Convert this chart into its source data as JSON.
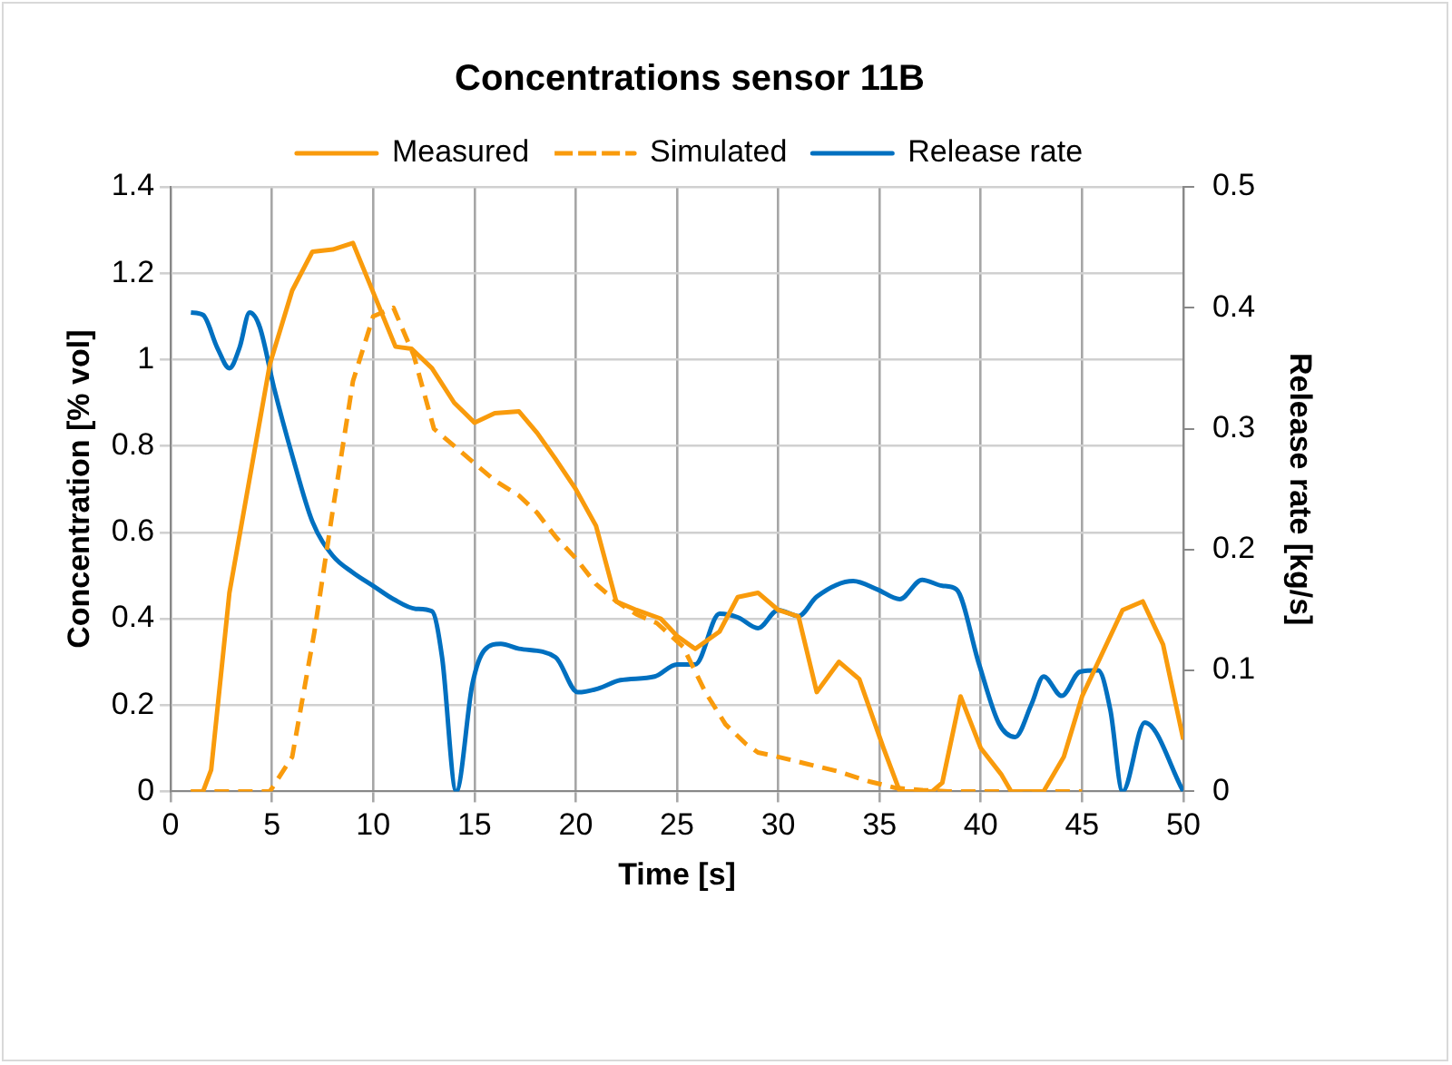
{
  "chart_data": {
    "type": "line",
    "title": "Concentrations sensor 11B",
    "xlabel": "Time [s]",
    "ylabel": "Concentration [% vol]",
    "y2label": "Release rate [kg/s]",
    "xlim": [
      0,
      50
    ],
    "xticks": [
      0,
      5,
      10,
      15,
      20,
      25,
      30,
      35,
      40,
      45,
      50
    ],
    "ylim": [
      0,
      1.4
    ],
    "yticks": [
      0,
      0.2,
      0.4,
      0.6,
      0.8,
      1,
      1.2,
      1.4
    ],
    "y2lim": [
      0,
      0.5
    ],
    "y2ticks": [
      0,
      0.1,
      0.2,
      0.3,
      0.4,
      0.5
    ],
    "grid": true,
    "legend": "top",
    "marker": "none",
    "series": [
      {
        "name": "Measured",
        "color": "#f99b0c",
        "line_style": "solid",
        "x": [
          1,
          1.6,
          2,
          2.9,
          4.9,
          6,
          7,
          8,
          9,
          11.1,
          11.9,
          12.9,
          14,
          15,
          16,
          17.2,
          18.1,
          19,
          20,
          21,
          22,
          23,
          24.2,
          25,
          25.9,
          27.1,
          28,
          29,
          30,
          31,
          31.9,
          33,
          34,
          35.2,
          36,
          37.6,
          38.1,
          39,
          40,
          41,
          41.5,
          43.1,
          44.1,
          45,
          47,
          48,
          49,
          50
        ],
        "values": [
          0,
          0,
          0.05,
          0.46,
          0.99,
          1.16,
          1.25,
          1.255,
          1.27,
          1.03,
          1.025,
          0.98,
          0.9,
          0.854,
          0.876,
          0.88,
          0.83,
          0.77,
          0.7,
          0.615,
          0.44,
          0.42,
          0.4,
          0.36,
          0.33,
          0.37,
          0.45,
          0.46,
          0.42,
          0.405,
          0.23,
          0.3,
          0.26,
          0.1,
          0,
          0,
          0.02,
          0.22,
          0.1,
          0.04,
          0,
          0,
          0.08,
          0.22,
          0.42,
          0.44,
          0.34,
          0.12
        ]
      },
      {
        "name": "Simulated",
        "color": "#f99b0c",
        "line_style": "dashed",
        "x": [
          1,
          4.9,
          6,
          7.1,
          8,
          9,
          10,
          11,
          12,
          13,
          14,
          15,
          16,
          17.2,
          18.1,
          19,
          20,
          21,
          22,
          23,
          24,
          25.3,
          26.4,
          27.4,
          28.4,
          29,
          30,
          31.3,
          32.9,
          34.5,
          35.8,
          37.1,
          38.4,
          45
        ],
        "values": [
          0,
          0,
          0.08,
          0.37,
          0.65,
          0.95,
          1.1,
          1.12,
          1.01,
          0.84,
          0.8,
          0.76,
          0.72,
          0.685,
          0.645,
          0.59,
          0.54,
          0.48,
          0.44,
          0.41,
          0.39,
          0.335,
          0.23,
          0.155,
          0.11,
          0.09,
          0.08,
          0.065,
          0.047,
          0.023,
          0.008,
          0.003,
          0,
          0
        ]
      },
      {
        "name": "Release rate",
        "color": "#0070c0",
        "line_style": "solid",
        "axis": "y2",
        "x": [
          1,
          1.6,
          2.3,
          2.9,
          3.4,
          3.9,
          4.4,
          5.1,
          6,
          7,
          8,
          9,
          10,
          11,
          12.1,
          12.9,
          13.4,
          14.1,
          14.9,
          15.5,
          16.3,
          17.2,
          19,
          20.1,
          21.1,
          22.2,
          23.9,
          25,
          25.9,
          27.1,
          28,
          29,
          30,
          31,
          31.9,
          33.7,
          34.9,
          36,
          37.1,
          38.1,
          38.8,
          39.9,
          40.9,
          41.7,
          42.5,
          43.1,
          44,
          44.9,
          45.8,
          46.4,
          47,
          48.1,
          50
        ],
        "values": [
          0.396,
          0.394,
          0.367,
          0.35,
          0.367,
          0.396,
          0.384,
          0.334,
          0.278,
          0.223,
          0.195,
          0.181,
          0.17,
          0.159,
          0.151,
          0.149,
          0.111,
          0,
          0.089,
          0.117,
          0.122,
          0.118,
          0.111,
          0.082,
          0.085,
          0.092,
          0.095,
          0.105,
          0.105,
          0.147,
          0.144,
          0.135,
          0.15,
          0.145,
          0.161,
          0.174,
          0.167,
          0.159,
          0.175,
          0.17,
          0.167,
          0.106,
          0.056,
          0.045,
          0.072,
          0.095,
          0.079,
          0.099,
          0.1,
          0.067,
          0,
          0.057,
          0
        ]
      }
    ]
  }
}
